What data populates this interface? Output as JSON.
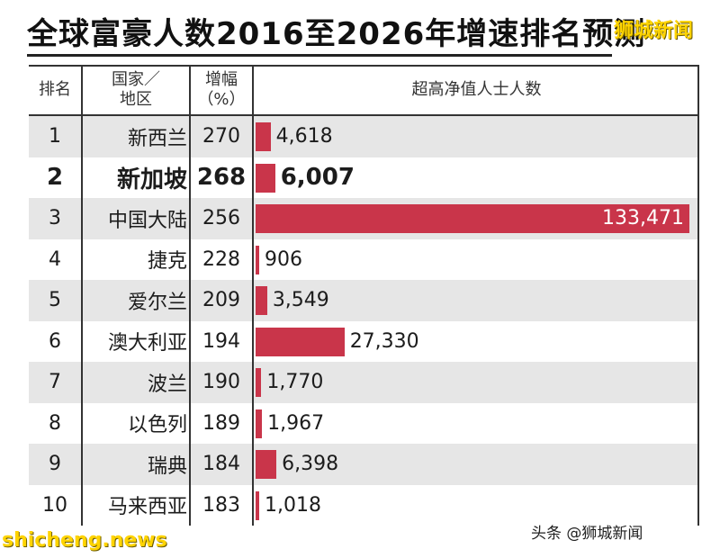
{
  "header": {
    "title": "全球富豪人数2016至2026年增速排名预测",
    "brand": "狮城新闻"
  },
  "columns": {
    "rank": "排名",
    "region_line1": "国家／",
    "region_line2": "地区",
    "growth_line1": "增幅",
    "growth_line2": "（%）",
    "uhnw": "超高净值人士人数"
  },
  "rows": [
    {
      "rank": "1",
      "region": "新西兰",
      "growth": "270",
      "value_label": "4,618"
    },
    {
      "rank": "2",
      "region": "新加坡",
      "growth": "268",
      "value_label": "6,007"
    },
    {
      "rank": "3",
      "region": "中国大陆",
      "growth": "256",
      "value_label": "133,471"
    },
    {
      "rank": "4",
      "region": "捷克",
      "growth": "228",
      "value_label": "906"
    },
    {
      "rank": "5",
      "region": "爱尔兰",
      "growth": "209",
      "value_label": "3,549"
    },
    {
      "rank": "6",
      "region": "澳大利亚",
      "growth": "194",
      "value_label": "27,330"
    },
    {
      "rank": "7",
      "region": "波兰",
      "growth": "190",
      "value_label": "1,770"
    },
    {
      "rank": "8",
      "region": "以色列",
      "growth": "189",
      "value_label": "1,967"
    },
    {
      "rank": "9",
      "region": "瑞典",
      "growth": "184",
      "value_label": "6,398"
    },
    {
      "rank": "10",
      "region": "马来西亚",
      "growth": "183",
      "value_label": "1,018"
    }
  ],
  "chart_data": {
    "type": "bar",
    "orientation": "horizontal",
    "title": "全球富豪人数2016至2026年增速排名预测",
    "categories": [
      "新西兰",
      "新加坡",
      "中国大陆",
      "捷克",
      "爱尔兰",
      "澳大利亚",
      "波兰",
      "以色列",
      "瑞典",
      "马来西亚"
    ],
    "values": [
      4618,
      6007,
      133471,
      906,
      3549,
      27330,
      1770,
      1967,
      6398,
      1018
    ],
    "growth_percent": [
      270,
      268,
      256,
      228,
      209,
      194,
      190,
      189,
      184,
      183
    ],
    "ylabel": "超高净值人士人数",
    "bar_color": "#c9354a",
    "highlight_category": "新加坡"
  },
  "watermarks": {
    "left": "shicheng.news",
    "right": "头条 @狮城新闻"
  }
}
